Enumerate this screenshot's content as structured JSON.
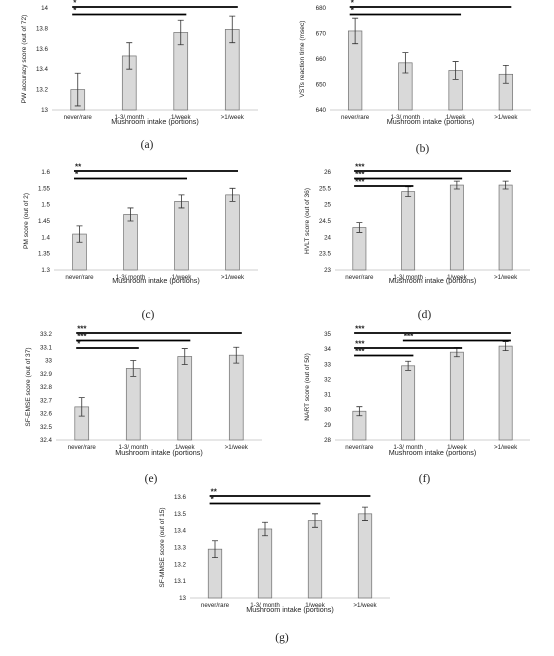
{
  "style": {
    "bar_fill": "#d9d9d9",
    "bar_stroke": "#6f6f6f",
    "sig_line": "#000000",
    "axis": "#bfbfbf",
    "text": "#222222"
  },
  "chart_data": [
    {
      "panel": "(a)",
      "type": "bar",
      "categories": [
        "never/rare",
        "1-3/ month",
        "1/week",
        ">1/week"
      ],
      "values": [
        13.2,
        13.53,
        13.76,
        13.79
      ],
      "errors": [
        0.16,
        0.13,
        0.12,
        0.13
      ],
      "ylabel": "PW accuracy score (out of 72)",
      "xlabel": "Mushroom intake (portions)",
      "ylim": [
        13,
        14
      ],
      "yticks": [
        "13",
        "13.2",
        "13.4",
        "13.6",
        "13.8",
        "14"
      ],
      "significance": [
        {
          "from": 0,
          "to": 3,
          "label": "*"
        },
        {
          "from": 0,
          "to": 2,
          "label": "*"
        }
      ]
    },
    {
      "panel": "(b)",
      "type": "bar",
      "categories": [
        "never/rare",
        "1-3/ month",
        "1/week",
        ">1/week"
      ],
      "values": [
        671,
        658.5,
        655.5,
        654
      ],
      "errors": [
        5,
        4,
        3.5,
        3.5
      ],
      "ylabel": "VSTs reaction time (msec)",
      "xlabel": "Mushroom intake (portions)",
      "ylim": [
        640,
        680
      ],
      "yticks": [
        "640",
        "650",
        "660",
        "670",
        "680"
      ],
      "significance": [
        {
          "from": 0,
          "to": 3,
          "label": "*"
        },
        {
          "from": 0,
          "to": 2,
          "label": "*"
        }
      ]
    },
    {
      "panel": "(c)",
      "type": "bar",
      "categories": [
        "never/rare",
        "1-3/ month",
        "1/week",
        ">1/week"
      ],
      "values": [
        1.41,
        1.47,
        1.51,
        1.53
      ],
      "errors": [
        0.025,
        0.02,
        0.02,
        0.02
      ],
      "ylabel": "PM score (out of 2)",
      "xlabel": "Mushroom intake (portions)",
      "ylim": [
        1.3,
        1.6
      ],
      "yticks": [
        "1.3",
        "1.35",
        "1.4",
        "1.45",
        "1.5",
        "1.55",
        "1.6"
      ],
      "significance": [
        {
          "from": 0,
          "to": 3,
          "label": "**"
        },
        {
          "from": 0,
          "to": 2,
          "label": "*"
        }
      ]
    },
    {
      "panel": "(d)",
      "type": "bar",
      "categories": [
        "never/rare",
        "1-3/ month",
        "1/week",
        ">1/week"
      ],
      "values": [
        24.3,
        25.4,
        25.6,
        25.6
      ],
      "errors": [
        0.15,
        0.15,
        0.12,
        0.12
      ],
      "ylabel": "HVLT score (out of 36)",
      "xlabel": "Mushroom intake (portions)",
      "ylim": [
        23,
        26
      ],
      "yticks": [
        "23",
        "23.5",
        "24",
        "24.5",
        "25",
        "25.5",
        "26"
      ],
      "significance": [
        {
          "from": 0,
          "to": 3,
          "label": "***"
        },
        {
          "from": 0,
          "to": 2,
          "label": "***"
        },
        {
          "from": 0,
          "to": 1,
          "label": "***"
        }
      ]
    },
    {
      "panel": "(e)",
      "type": "bar",
      "categories": [
        "never/rare",
        "1-3/ month",
        "1/week",
        ">1/week"
      ],
      "values": [
        32.65,
        32.94,
        33.03,
        33.04
      ],
      "errors": [
        0.07,
        0.06,
        0.06,
        0.06
      ],
      "ylabel": "SF-EMSE score (out of 37)",
      "xlabel": "Mushroom intake (portions)",
      "ylim": [
        32.4,
        33.2
      ],
      "yticks": [
        "32.4",
        "32.5",
        "32.6",
        "32.7",
        "32.8",
        "32.9",
        "33",
        "33.1",
        "33.2"
      ],
      "significance": [
        {
          "from": 0,
          "to": 3,
          "label": "***"
        },
        {
          "from": 0,
          "to": 2,
          "label": "***"
        },
        {
          "from": 0,
          "to": 1,
          "label": "*"
        }
      ]
    },
    {
      "panel": "(f)",
      "type": "bar",
      "categories": [
        "never/rare",
        "1-3/ month",
        "1/week",
        ">1/week"
      ],
      "values": [
        29.9,
        32.9,
        33.8,
        34.2
      ],
      "errors": [
        0.3,
        0.3,
        0.3,
        0.3
      ],
      "ylabel": "NART score (out of 50)",
      "xlabel": "Mushroom intake (portions)",
      "ylim": [
        28,
        35
      ],
      "yticks": [
        "28",
        "29",
        "30",
        "31",
        "32",
        "33",
        "34",
        "35"
      ],
      "significance": [
        {
          "from": 0,
          "to": 3,
          "label": "***"
        },
        {
          "from": 1,
          "to": 3,
          "label": "***"
        },
        {
          "from": 0,
          "to": 2,
          "label": "***"
        },
        {
          "from": 0,
          "to": 1,
          "label": "***"
        }
      ]
    },
    {
      "panel": "(g)",
      "type": "bar",
      "categories": [
        "never/rare",
        "1-3/ month",
        "1/week",
        ">1/week"
      ],
      "values": [
        13.29,
        13.41,
        13.46,
        13.5
      ],
      "errors": [
        0.05,
        0.04,
        0.04,
        0.04
      ],
      "ylabel": "SF-MMSE score (out of 15)",
      "xlabel": "Mushroom intake (portions)",
      "ylim": [
        13,
        13.6
      ],
      "yticks": [
        "13",
        "13.1",
        "13.2",
        "13.3",
        "13.4",
        "13.5",
        "13.6"
      ],
      "significance": [
        {
          "from": 0,
          "to": 3,
          "label": "**"
        },
        {
          "from": 0,
          "to": 2,
          "label": "*"
        }
      ]
    }
  ]
}
